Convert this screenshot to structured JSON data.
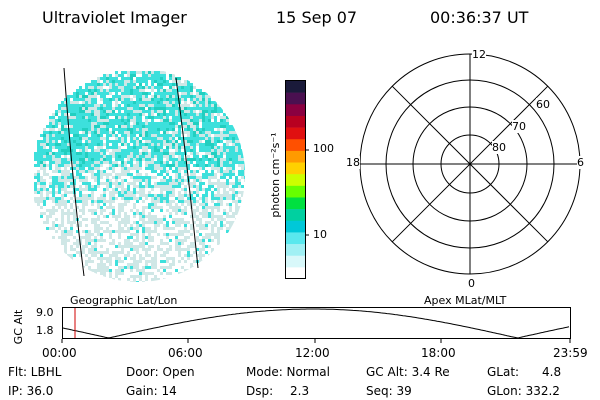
{
  "header": {
    "instrument": "Ultraviolet Imager",
    "date": "15 Sep 07",
    "time": "00:36:37 UT"
  },
  "colors": {
    "cyan": "#3de0dc",
    "teal": "#22cfc0",
    "pale": "#cfe7e6",
    "line": "#000000",
    "marker": "#d00000"
  },
  "colorbar": {
    "unit_label": "photon cm⁻²s⁻¹",
    "tick_labels": [
      "100",
      "10"
    ],
    "scale": "log",
    "colors": [
      "#1a1a3a",
      "#4a1050",
      "#8a0040",
      "#b80020",
      "#e01010",
      "#ff5000",
      "#ff9a00",
      "#ffd000",
      "#ccff00",
      "#66ff00",
      "#00e040",
      "#00d0a0",
      "#00c8d8",
      "#5ae8ee",
      "#a0f0f4",
      "#d8f8fa",
      "#ffffff"
    ]
  },
  "polar": {
    "mlt_labels": {
      "top": "12",
      "left": "18",
      "right": "6",
      "bottom": "0"
    },
    "lat_labels": [
      "60",
      "70",
      "80"
    ]
  },
  "timeline": {
    "left_title": "Geographic Lat/Lon",
    "right_title": "Apex MLat/MLT",
    "y_axis_label": "GC Alt",
    "y_ticks": [
      "9.0",
      "1.8"
    ],
    "x_ticks": [
      "00:00",
      "06:00",
      "12:00",
      "18:00",
      "23:59"
    ],
    "marker_time": "00:36:37"
  },
  "info": {
    "flt": "Flt: LBHL",
    "ip": "IP: 36.0",
    "door": "Door: Open",
    "gain": "Gain: 14",
    "mode": "Mode: Normal",
    "dsp_label": "Dsp:",
    "dsp_value": "2.3",
    "gcalt": "GC Alt: 3.4 Re",
    "seq": "Seq: 39",
    "glat_label": "GLat:",
    "glat_value": "4.8",
    "glon": "GLon: 332.2"
  }
}
